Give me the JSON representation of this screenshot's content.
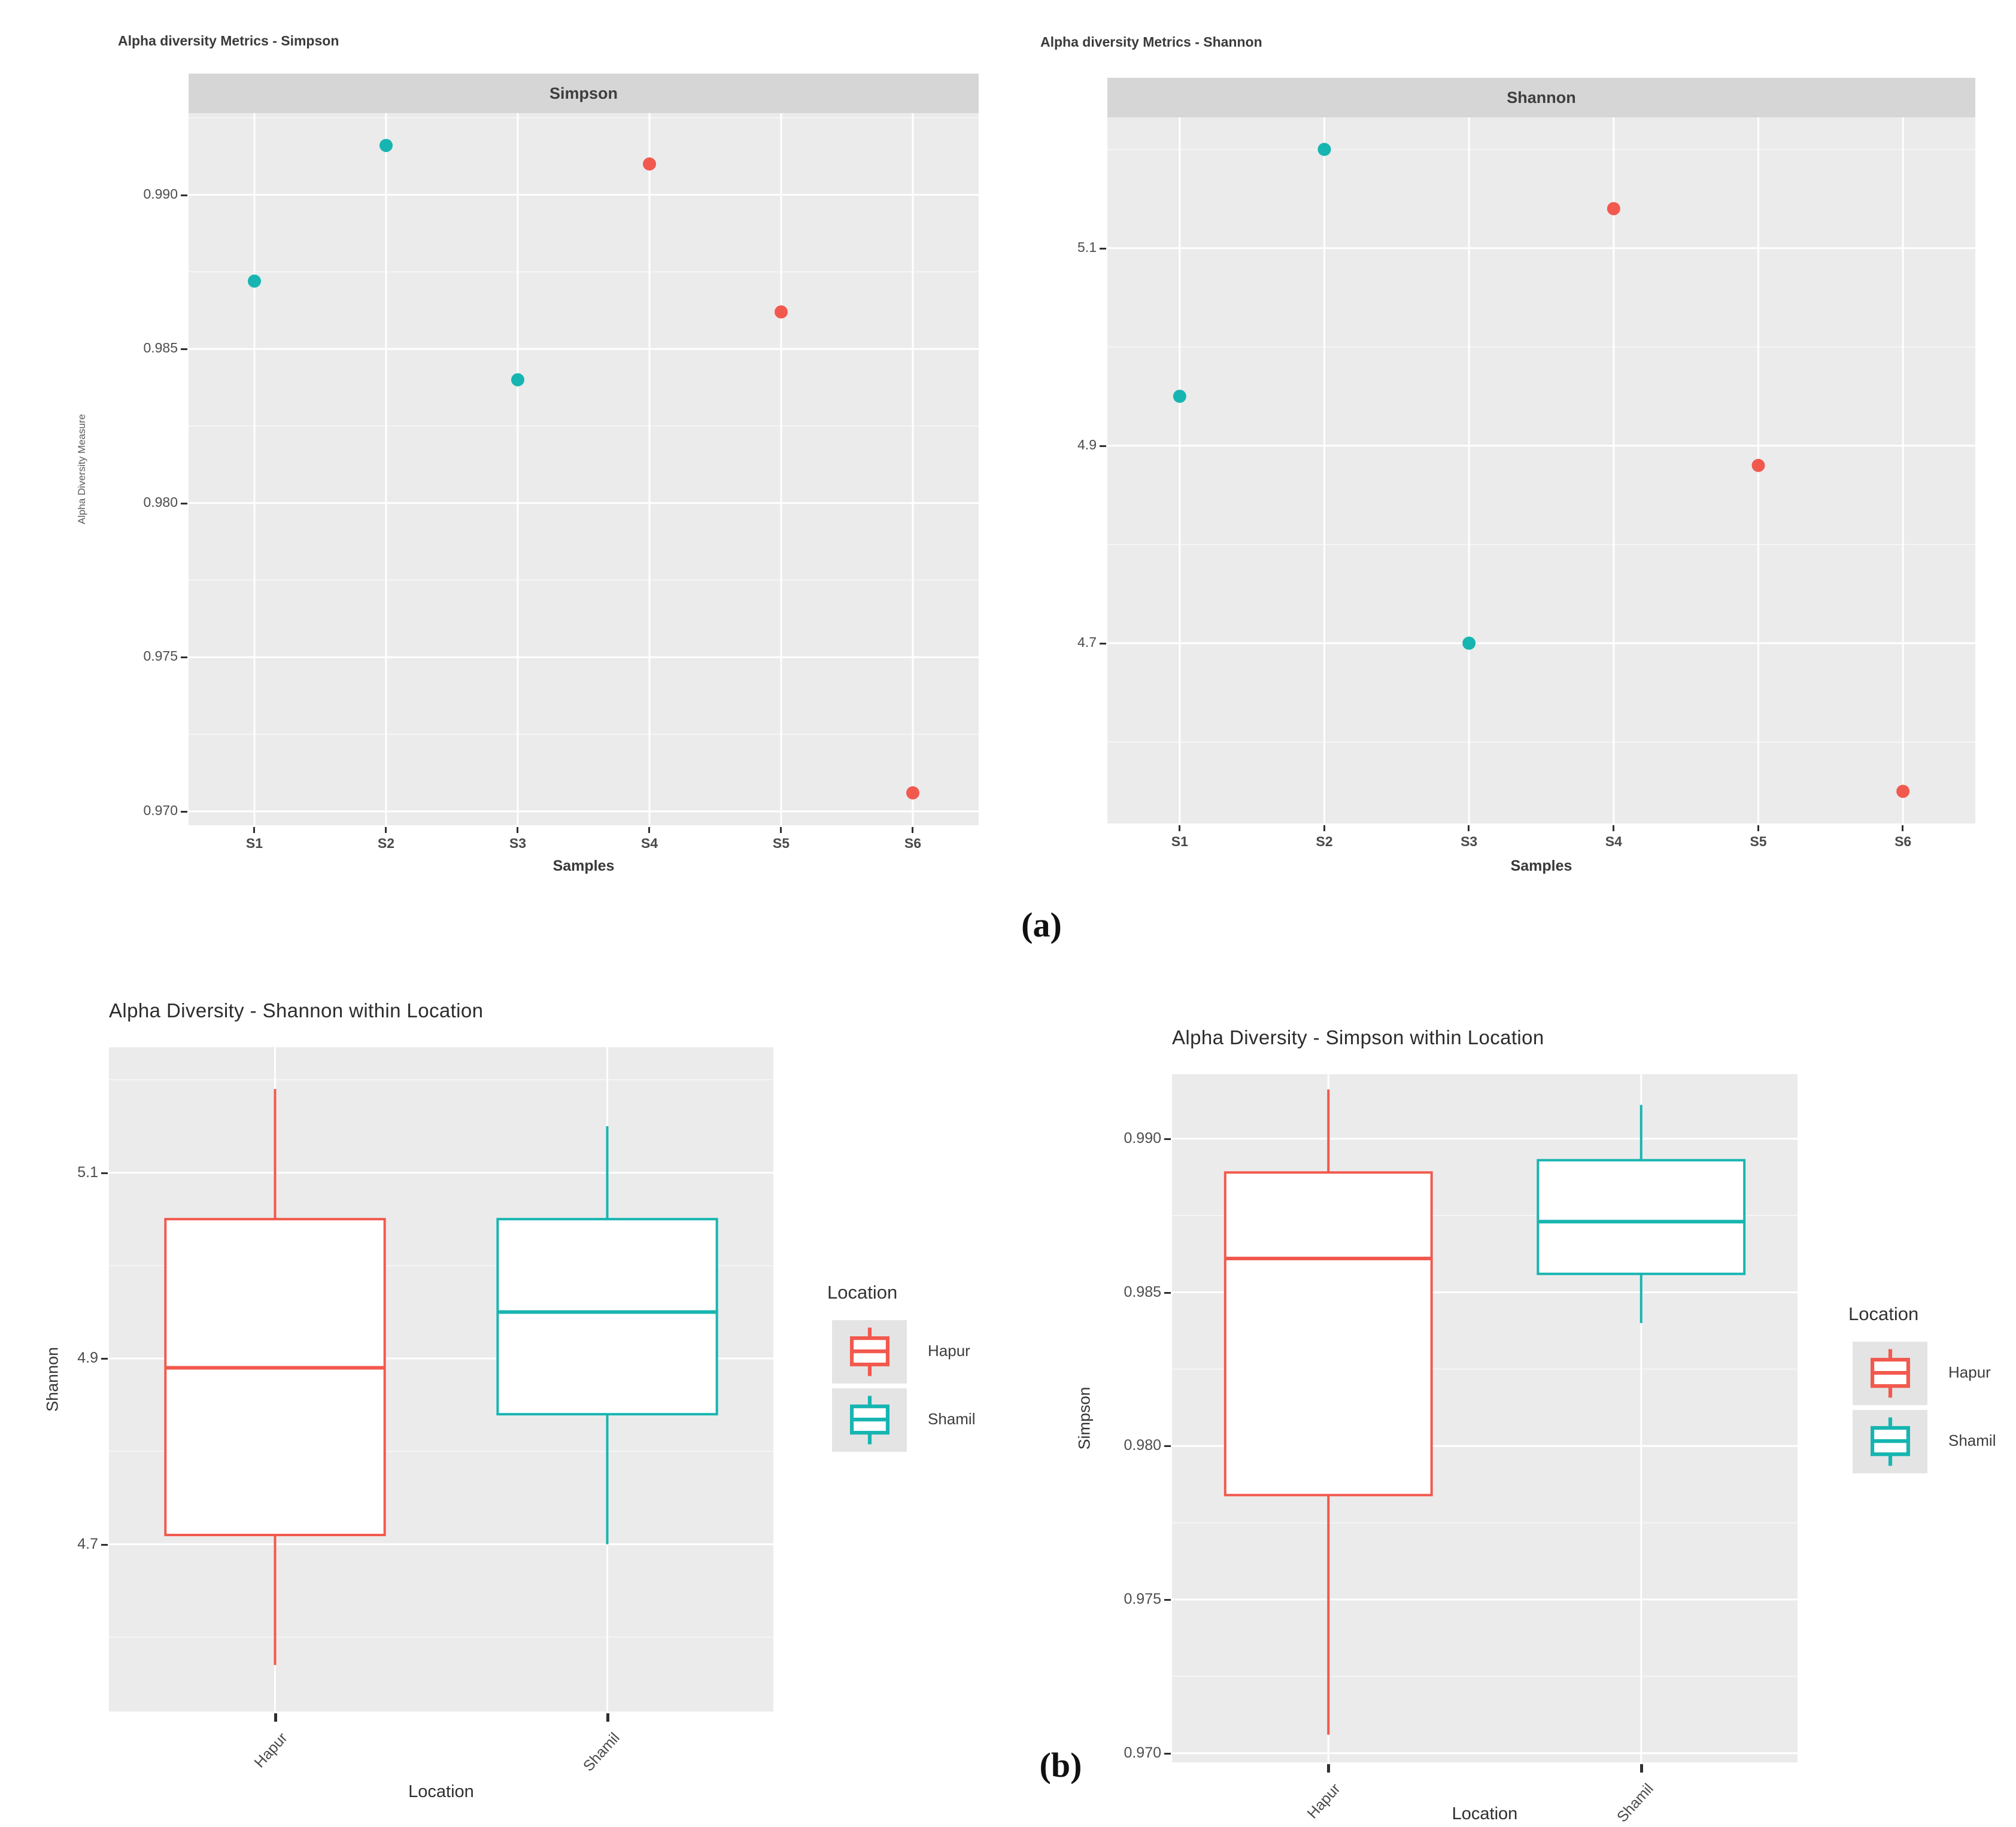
{
  "figure": {
    "label_a": "(a)",
    "label_b": "(b)"
  },
  "colors": {
    "hapur": "#f2594e",
    "shamil": "#17b5b1",
    "panel_bg": "#ebebeb",
    "strip_bg": "#d6d6d6",
    "grid_major": "#ffffff",
    "grid_minor": "#f7f7f7",
    "tick_mark": "#2f2f2f",
    "box_fill": "#ffffff"
  },
  "chart_data": [
    {
      "id": "simpson-scatter",
      "type": "scatter",
      "title": "Alpha diversity Metrics - Simpson",
      "strip_label": "Simpson",
      "xlabel": "Samples",
      "ylabel": "Alpha Diversity Measure",
      "categories": [
        "S1",
        "S2",
        "S3",
        "S4",
        "S5",
        "S6"
      ],
      "series": [
        {
          "name": "Shamil",
          "color_key": "shamil",
          "points": [
            {
              "x": "S1",
              "y": 0.9872
            },
            {
              "x": "S2",
              "y": 0.9916
            },
            {
              "x": "S3",
              "y": 0.984
            }
          ]
        },
        {
          "name": "Hapur",
          "color_key": "hapur",
          "points": [
            {
              "x": "S4",
              "y": 0.991
            },
            {
              "x": "S5",
              "y": 0.9862
            },
            {
              "x": "S6",
              "y": 0.9706
            }
          ]
        }
      ],
      "yticks": [
        0.99,
        0.985,
        0.98,
        0.975,
        0.97
      ],
      "ytick_labels": [
        "0.990",
        "0.985",
        "0.980",
        "0.975",
        "0.970"
      ],
      "minor_yticks": [
        0.9925,
        0.9875,
        0.9825,
        0.9775,
        0.9725
      ],
      "ylim": [
        0.96955,
        0.99265
      ],
      "grid": true,
      "legend": null
    },
    {
      "id": "shannon-scatter",
      "type": "scatter",
      "title": "Alpha diversity Metrics - Shannon",
      "strip_label": "Shannon",
      "xlabel": "Samples",
      "ylabel": "",
      "categories": [
        "S1",
        "S2",
        "S3",
        "S4",
        "S5",
        "S6"
      ],
      "series": [
        {
          "name": "Shamil",
          "color_key": "shamil",
          "points": [
            {
              "x": "S1",
              "y": 4.95
            },
            {
              "x": "S2",
              "y": 5.2
            },
            {
              "x": "S3",
              "y": 4.7
            }
          ]
        },
        {
          "name": "Hapur",
          "color_key": "hapur",
          "points": [
            {
              "x": "S4",
              "y": 5.14
            },
            {
              "x": "S5",
              "y": 4.88
            },
            {
              "x": "S6",
              "y": 4.55
            }
          ]
        }
      ],
      "yticks": [
        5.1,
        4.9,
        4.7
      ],
      "ytick_labels": [
        "5.1",
        "4.9",
        "4.7"
      ],
      "minor_yticks": [
        5.2,
        5.0,
        4.8,
        4.6
      ],
      "ylim": [
        4.5175,
        5.2325
      ],
      "grid": true,
      "legend": null
    },
    {
      "id": "shannon-box",
      "type": "box",
      "title": "Alpha Diversity - Shannon within Location",
      "xlabel": "Location",
      "ylabel": "Shannon",
      "categories": [
        "Hapur",
        "Shamil"
      ],
      "boxes": [
        {
          "name": "Hapur",
          "color_key": "hapur",
          "min": 4.57,
          "q1": 4.71,
          "median": 4.89,
          "q3": 5.05,
          "max": 5.19
        },
        {
          "name": "Shamil",
          "color_key": "shamil",
          "min": 4.7,
          "q1": 4.84,
          "median": 4.95,
          "q3": 5.05,
          "max": 5.15
        }
      ],
      "yticks": [
        5.1,
        4.9,
        4.7
      ],
      "ytick_labels": [
        "5.1",
        "4.9",
        "4.7"
      ],
      "minor_yticks": [
        5.2,
        5.0,
        4.8,
        4.6
      ],
      "ylim": [
        4.52,
        5.235
      ],
      "box_width_frac": 0.33,
      "grid": true,
      "legend": {
        "title": "Location",
        "items": [
          {
            "label": "Hapur",
            "color_key": "hapur"
          },
          {
            "label": "Shamil",
            "color_key": "shamil"
          }
        ]
      }
    },
    {
      "id": "simpson-box",
      "type": "box",
      "title": "Alpha Diversity - Simpson within Location",
      "xlabel": "Location",
      "ylabel": "Simpson",
      "categories": [
        "Hapur",
        "Shamil"
      ],
      "boxes": [
        {
          "name": "Hapur",
          "color_key": "hapur",
          "min": 0.9706,
          "q1": 0.9784,
          "median": 0.9861,
          "q3": 0.9889,
          "max": 0.9916
        },
        {
          "name": "Shamil",
          "color_key": "shamil",
          "min": 0.984,
          "q1": 0.9856,
          "median": 0.9873,
          "q3": 0.9893,
          "max": 0.9911
        }
      ],
      "yticks": [
        0.99,
        0.985,
        0.98,
        0.975,
        0.97
      ],
      "ytick_labels": [
        "0.990",
        "0.985",
        "0.980",
        "0.975",
        "0.970"
      ],
      "minor_yticks": [
        0.9875,
        0.9825,
        0.9775,
        0.9725
      ],
      "ylim": [
        0.9697,
        0.9921
      ],
      "box_width_frac": 0.33,
      "grid": true,
      "legend": {
        "title": "Location",
        "items": [
          {
            "label": "Hapur",
            "color_key": "hapur"
          },
          {
            "label": "Shamil",
            "color_key": "shamil"
          }
        ]
      }
    }
  ]
}
